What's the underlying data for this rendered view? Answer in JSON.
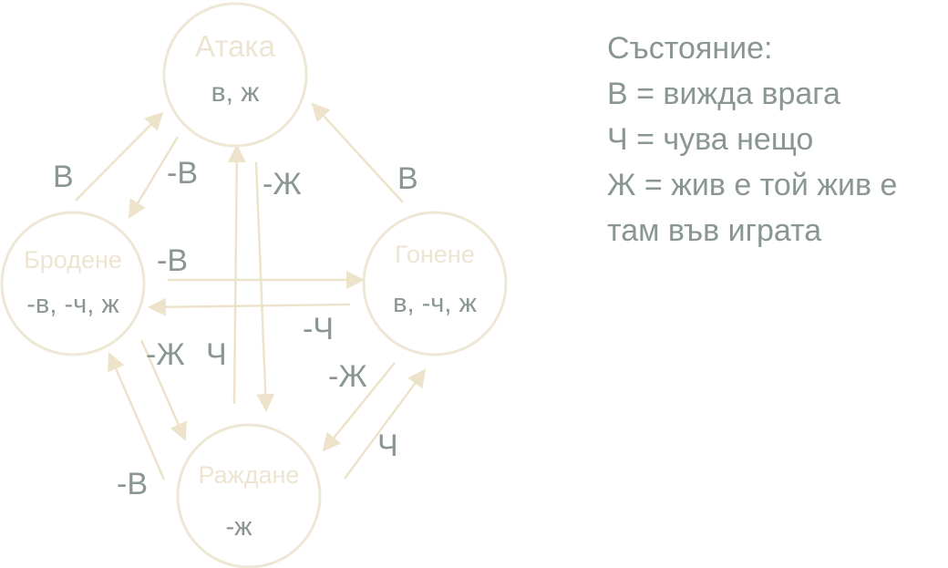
{
  "colors": {
    "node_stroke": "#efe7d6",
    "node_title": "#ede5d2",
    "arrow": "#ece3ca",
    "text": "#8a9691"
  },
  "nodes": {
    "attack": {
      "title": "Атака",
      "condition": "в, ж"
    },
    "wander": {
      "title": "Бродене",
      "condition": "-в, -ч, ж"
    },
    "chase": {
      "title": "Гонене",
      "condition": "в, -ч, ж"
    },
    "spawn": {
      "title": "Раждане",
      "condition": "-ж"
    }
  },
  "edges": {
    "wander_to_attack": "В",
    "attack_to_wander": "-В",
    "attack_to_spawn": "-Ж",
    "chase_to_attack": "В",
    "wander_to_chase": "-В",
    "chase_to_wander": "-Ч",
    "wander_to_spawn": "-Ж",
    "spawn_to_attack": "Ч",
    "chase_to_spawn": "-Ж",
    "spawn_to_chase": "Ч",
    "spawn_to_wander": "-В"
  },
  "legend": {
    "heading": "Състояние:",
    "lines": [
      "В = вижда врага",
      "Ч = чува нещо",
      "Ж = жив е той жив е",
      "там във играта"
    ]
  }
}
